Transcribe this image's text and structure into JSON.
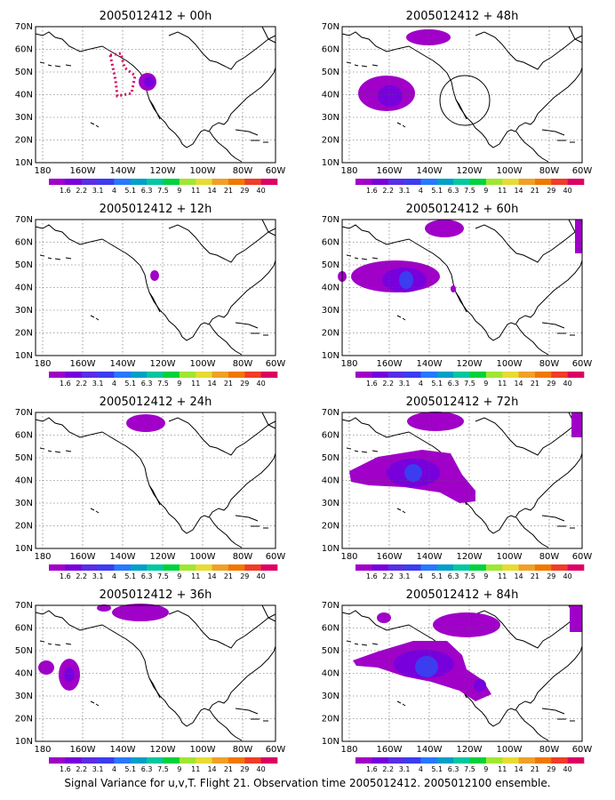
{
  "caption": "Signal Variance for u,v,T. Flight 21. Observation time 2005012412. 2005012100 ensemble.",
  "colorbar": {
    "labels": [
      "1.6",
      "2.2",
      "3.1",
      "4",
      "5.1",
      "6.3",
      "7.5",
      "9",
      "11",
      "14",
      "21",
      "29",
      "40"
    ],
    "colors": [
      "#a000c8",
      "#7800dc",
      "#5a2de6",
      "#3c3cf0",
      "#2878ff",
      "#00a0c8",
      "#00c8a0",
      "#00d23c",
      "#a0e632",
      "#e6dc32",
      "#f0a028",
      "#f07800",
      "#f03c28",
      "#dc0064"
    ]
  },
  "axes": {
    "lat_labels": [
      "10N",
      "20N",
      "30N",
      "40N",
      "50N",
      "60N",
      "70N"
    ],
    "lon_labels": [
      "180",
      "160W",
      "140W",
      "120W",
      "100W",
      "80W",
      "60W"
    ]
  },
  "panels": [
    {
      "title": "2005012412 + 00h"
    },
    {
      "title": "2005012412 + 48h"
    },
    {
      "title": "2005012412 + 12h"
    },
    {
      "title": "2005012412 + 60h"
    },
    {
      "title": "2005012412 + 24h"
    },
    {
      "title": "2005012412 + 72h"
    },
    {
      "title": "2005012412 + 36h"
    },
    {
      "title": "2005012412 + 84h"
    }
  ]
}
